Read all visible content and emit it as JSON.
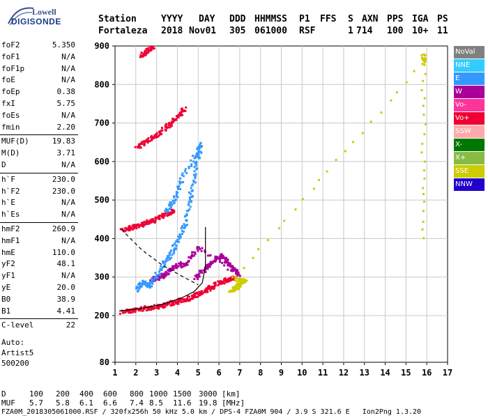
{
  "logo": {
    "line1": "Lowell",
    "line2": "DIGISONDE"
  },
  "header": {
    "labels": [
      "Station",
      "YYYY",
      "DAY",
      "DDD",
      "HHMMSS",
      "P1",
      "FFS",
      "S",
      "AXN",
      "PPS",
      "IGA",
      "PS"
    ],
    "values": [
      "Fortaleza",
      "2018",
      "Nov01",
      "305",
      "061000",
      "RSF",
      "",
      "1",
      "714",
      "100",
      "10+",
      "11"
    ]
  },
  "params": [
    {
      "label": "foF2",
      "value": "5.350"
    },
    {
      "label": "foF1",
      "value": "N/A"
    },
    {
      "label": "foF1p",
      "value": "N/A"
    },
    {
      "label": "foE",
      "value": "N/A"
    },
    {
      "label": "foEp",
      "value": "0.38"
    },
    {
      "label": "fxI",
      "value": "5.75"
    },
    {
      "label": "foEs",
      "value": "N/A"
    },
    {
      "label": "fmin",
      "value": "2.20"
    },
    {
      "label": "MUF(D)",
      "value": "19.83"
    },
    {
      "label": "M(D)",
      "value": "3.71"
    },
    {
      "label": "D",
      "value": "N/A"
    },
    {
      "label": "h`F",
      "value": "230.0"
    },
    {
      "label": "h`F2",
      "value": "230.0"
    },
    {
      "label": "h`E",
      "value": "N/A"
    },
    {
      "label": "h`Es",
      "value": "N/A"
    },
    {
      "label": "hmF2",
      "value": "260.9"
    },
    {
      "label": "hmF1",
      "value": "N/A"
    },
    {
      "label": "hmE",
      "value": "110.0"
    },
    {
      "label": "yF2",
      "value": "48.1"
    },
    {
      "label": "yF1",
      "value": "N/A"
    },
    {
      "label": "yE",
      "value": "20.0"
    },
    {
      "label": "B0",
      "value": "38.9"
    },
    {
      "label": "B1",
      "value": "4.41"
    },
    {
      "label": "C-level",
      "value": "22"
    }
  ],
  "auto": {
    "line1": "Auto:",
    "line2": "Artist5",
    "line3": "500200"
  },
  "legend": [
    {
      "label": "NoVal",
      "color": "#808080"
    },
    {
      "label": "NNE",
      "color": "#33ccff"
    },
    {
      "label": "E",
      "color": "#3399ff"
    },
    {
      "label": "W",
      "color": "#aa0099"
    },
    {
      "label": "Vo-",
      "color": "#ff3399"
    },
    {
      "label": "Vo+",
      "color": "#ee0033"
    },
    {
      "label": "SSW",
      "color": "#ffaaaa"
    },
    {
      "label": "X-",
      "color": "#007700"
    },
    {
      "label": "X+",
      "color": "#88bb44"
    },
    {
      "label": "SSE",
      "color": "#cccc00"
    },
    {
      "label": "NNW",
      "color": "#2200cc"
    }
  ],
  "footer": {
    "row1_label": "D",
    "row1_values": [
      "100",
      "200",
      "400",
      "600",
      "800",
      "1000",
      "1500",
      "3000",
      "[km]"
    ],
    "row2_label": "MUF",
    "row2_values": [
      "5.7",
      "5.8",
      "6.1",
      "6.6",
      "7.4",
      "8.5",
      "11.6",
      "19.8",
      "[MHz]"
    ],
    "info": "FZA0M_2018305061000.RSF / 320fx256h 50 kHz 5.0 km / DPS-4 FZA0M 904 / 3.9 S 321.6 E   Ion2Png 1.3.20"
  },
  "chart_data": {
    "type": "scatter",
    "title": "",
    "xlabel": "",
    "ylabel": "",
    "xlim": [
      1,
      17
    ],
    "ylim": [
      80,
      900
    ],
    "x_ticks": [
      "1",
      "2",
      "3",
      "4",
      "5",
      "6",
      "7",
      "8",
      "9",
      "10",
      "11",
      "12",
      "13",
      "14",
      "15",
      "16",
      "17"
    ],
    "y_ticks": [
      "80",
      "200",
      "300",
      "400",
      "500",
      "600",
      "700",
      "800",
      "900"
    ],
    "y_tick_values": [
      80,
      200,
      300,
      400,
      500,
      600,
      700,
      800,
      900
    ],
    "grid": true,
    "traces": [
      {
        "name": "F-trace 1st hop",
        "color": "#ee0033",
        "points": [
          [
            1.3,
            212
          ],
          [
            1.8,
            216
          ],
          [
            2.3,
            220
          ],
          [
            2.8,
            224
          ],
          [
            3.3,
            230
          ],
          [
            3.8,
            236
          ],
          [
            4.3,
            244
          ],
          [
            4.8,
            254
          ],
          [
            5.2,
            264
          ],
          [
            5.6,
            276
          ],
          [
            6.0,
            288
          ],
          [
            6.4,
            296
          ],
          [
            6.8,
            300
          ]
        ]
      },
      {
        "name": "F-trace 2nd hop",
        "color": "#ee0033",
        "points": [
          [
            1.3,
            424
          ],
          [
            1.8,
            432
          ],
          [
            2.3,
            440
          ],
          [
            2.8,
            450
          ],
          [
            3.3,
            462
          ],
          [
            3.8,
            476
          ]
        ]
      },
      {
        "name": "F-trace 3rd hop",
        "color": "#ee0033",
        "points": [
          [
            2.0,
            640
          ],
          [
            2.5,
            654
          ],
          [
            3.0,
            672
          ],
          [
            3.5,
            694
          ],
          [
            4.0,
            720
          ],
          [
            4.3,
            740
          ]
        ]
      },
      {
        "name": "F-trace 4th hop",
        "color": "#ee0033",
        "points": [
          [
            2.2,
            876
          ],
          [
            2.5,
            890
          ],
          [
            2.8,
            900
          ]
        ]
      },
      {
        "name": "W cluster",
        "color": "#aa0099",
        "points": [
          [
            4.8,
            300
          ],
          [
            5.2,
            320
          ],
          [
            5.6,
            340
          ],
          [
            6.1,
            360
          ],
          [
            6.5,
            330
          ],
          [
            6.9,
            310
          ],
          [
            5.0,
            380
          ],
          [
            4.4,
            340
          ],
          [
            3.9,
            330
          ],
          [
            3.4,
            310
          ],
          [
            3.0,
            300
          ],
          [
            2.7,
            296
          ]
        ]
      },
      {
        "name": "E cluster",
        "color": "#3399ff",
        "points": [
          [
            2.0,
            270
          ],
          [
            2.3,
            290
          ],
          [
            2.6,
            280
          ],
          [
            3.1,
            320
          ],
          [
            3.6,
            360
          ],
          [
            4.0,
            400
          ],
          [
            4.4,
            450
          ],
          [
            4.6,
            520
          ],
          [
            4.9,
            600
          ],
          [
            5.1,
            650
          ],
          [
            4.2,
            560
          ],
          [
            3.8,
            500
          ],
          [
            3.4,
            470
          ]
        ]
      },
      {
        "name": "SSE cluster",
        "color": "#cccc00",
        "points": [
          [
            6.5,
            268
          ],
          [
            6.8,
            276
          ],
          [
            7.0,
            286
          ],
          [
            7.2,
            292
          ],
          [
            6.7,
            300
          ],
          [
            15.8,
            860
          ],
          [
            15.8,
            880
          ],
          [
            15.8,
            380
          ]
        ]
      }
    ],
    "model_profile": {
      "color": "#000000",
      "points": [
        [
          1.2,
          212
        ],
        [
          2.2,
          218
        ],
        [
          3.2,
          228
        ],
        [
          4.2,
          246
        ],
        [
          4.8,
          262
        ],
        [
          5.2,
          285
        ],
        [
          5.35,
          330
        ],
        [
          5.35,
          430
        ]
      ]
    },
    "second_hop_profile": {
      "color": "#000000",
      "dashed": true,
      "points": [
        [
          1.3,
          424
        ],
        [
          2.3,
          370
        ],
        [
          3.3,
          330
        ],
        [
          4.3,
          300
        ],
        [
          5.0,
          280
        ]
      ]
    }
  }
}
